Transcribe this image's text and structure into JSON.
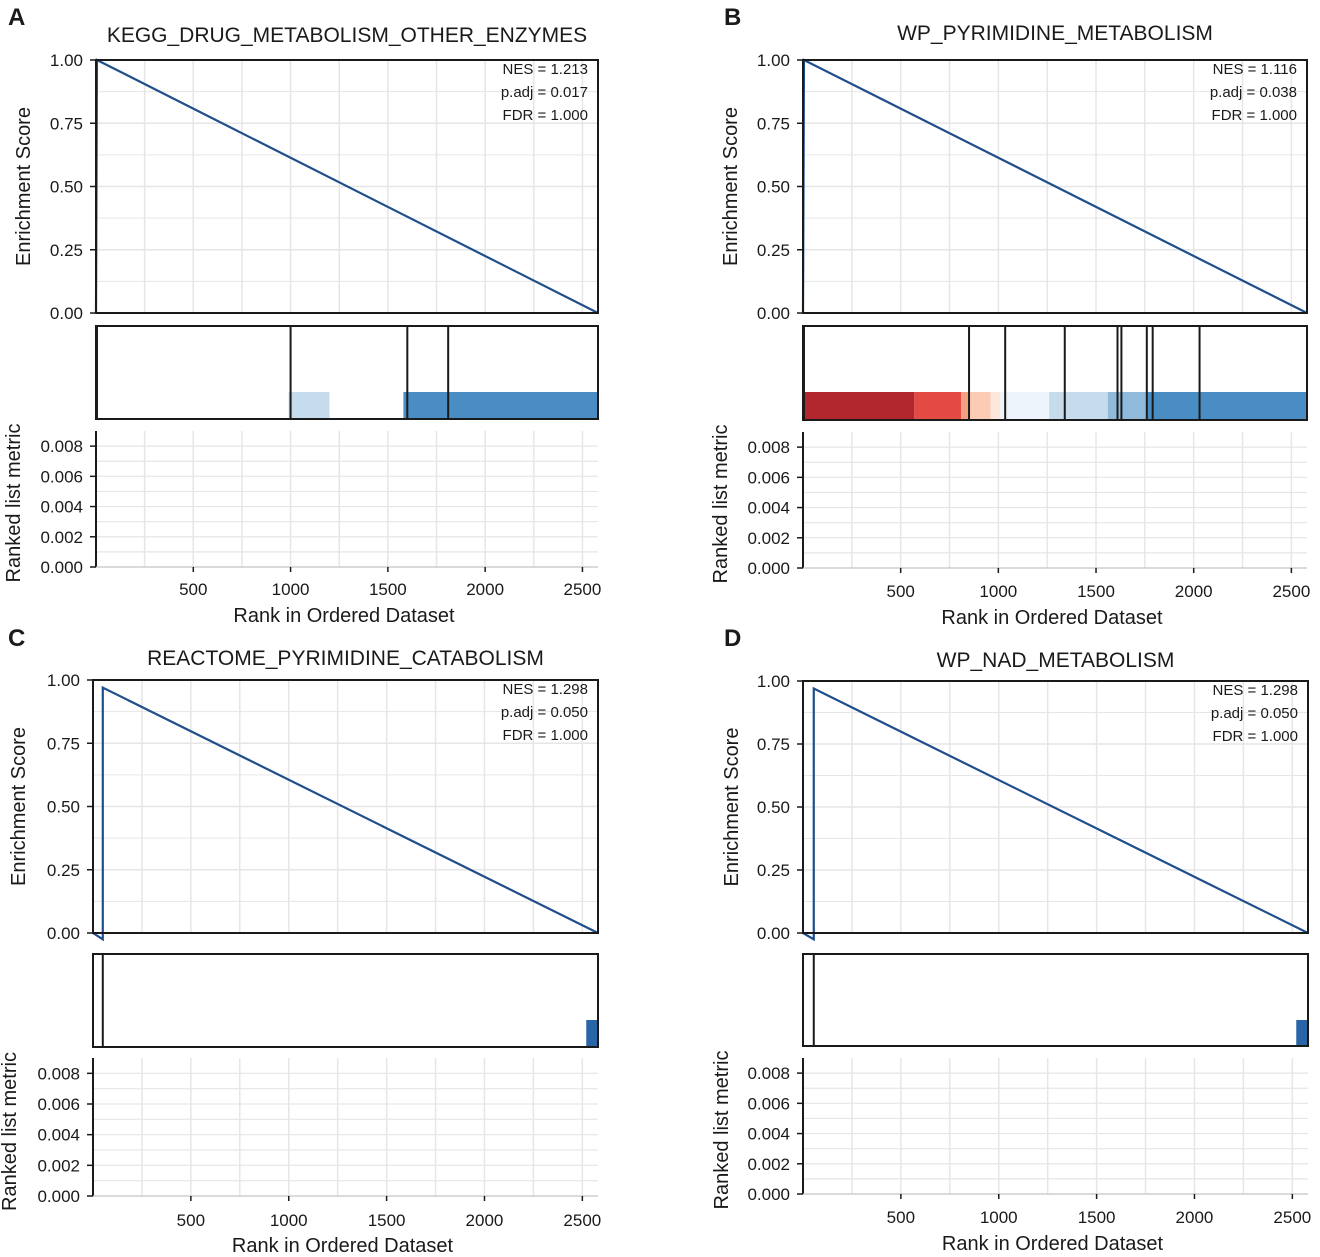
{
  "figure": {
    "colors": {
      "curve": "#1f4e8c",
      "frame": "#1a1a1a",
      "grid": "#e6e6e6",
      "zero_line": "#999999",
      "text": "#1a1a1a"
    }
  },
  "chart_data": [
    {
      "panel": "A",
      "type": "line",
      "title": "KEGG_DRUG_METABOLISM_OTHER_ENZYMES",
      "stats": [
        "NES = 1.213",
        "p.adj = 0.017",
        "FDR = 1.000"
      ],
      "ylabel": "Enrichment Score",
      "ylabel_metric": "Ranked list metric",
      "xlabel": "Rank in Ordered Dataset",
      "xlim": [
        0,
        2580
      ],
      "ylim": [
        0,
        1
      ],
      "yticks": [
        "0.00",
        "0.25",
        "0.50",
        "0.75",
        "1.00"
      ],
      "metric_ylim": [
        0,
        0.009
      ],
      "metric_yticks": [
        "0.000",
        "0.002",
        "0.004",
        "0.006",
        "0.008"
      ],
      "xticks": [
        "500",
        "1000",
        "1500",
        "2000",
        "2500"
      ],
      "es_curve": {
        "x": [
          0,
          5,
          2580
        ],
        "y": [
          0,
          1.0,
          0
        ]
      },
      "hits": [
        5,
        1000,
        1600,
        1810
      ],
      "heat_segments": [
        {
          "from": 990,
          "to": 1200,
          "color": "#c6dcec"
        },
        {
          "from": 1580,
          "to": 2580,
          "color": "#4a8cc4"
        }
      ]
    },
    {
      "panel": "B",
      "type": "line",
      "title": "WP_PYRIMIDINE_METABOLISM",
      "stats": [
        "NES = 1.116",
        "p.adj = 0.038",
        "FDR = 1.000"
      ],
      "ylabel": "Enrichment Score",
      "ylabel_metric": "Ranked list metric",
      "xlabel": "Rank in Ordered Dataset",
      "xlim": [
        0,
        2580
      ],
      "ylim": [
        0,
        1
      ],
      "yticks": [
        "0.00",
        "0.25",
        "0.50",
        "0.75",
        "1.00"
      ],
      "metric_ylim": [
        0,
        0.009
      ],
      "metric_yticks": [
        "0.000",
        "0.002",
        "0.004",
        "0.006",
        "0.008"
      ],
      "xticks": [
        "500",
        "1000",
        "1500",
        "2000",
        "2500"
      ],
      "es_curve": {
        "x": [
          0,
          5,
          2580
        ],
        "y": [
          0,
          1.0,
          0
        ]
      },
      "hits": [
        5,
        850,
        1035,
        1340,
        1610,
        1630,
        1760,
        1790,
        2030
      ],
      "heat_segments": [
        {
          "from": 0,
          "to": 570,
          "color": "#b2262e"
        },
        {
          "from": 570,
          "to": 810,
          "color": "#e34a43"
        },
        {
          "from": 810,
          "to": 850,
          "color": "#f4a080"
        },
        {
          "from": 850,
          "to": 960,
          "color": "#fbcbb4"
        },
        {
          "from": 960,
          "to": 1010,
          "color": "#fde7dc"
        },
        {
          "from": 1010,
          "to": 1260,
          "color": "#eef4fb"
        },
        {
          "from": 1260,
          "to": 1560,
          "color": "#c6dcec"
        },
        {
          "from": 1560,
          "to": 1760,
          "color": "#8fbadc"
        },
        {
          "from": 1760,
          "to": 2580,
          "color": "#4a8cc4"
        }
      ]
    },
    {
      "panel": "C",
      "type": "line",
      "title": "REACTOME_PYRIMIDINE_CATABOLISM",
      "stats": [
        "NES = 1.298",
        "p.adj = 0.050",
        "FDR = 1.000"
      ],
      "ylabel": "Enrichment Score",
      "ylabel_metric": "Ranked list metric",
      "xlabel": "Rank in Ordered Dataset",
      "xlim": [
        0,
        2580
      ],
      "ylim": [
        0,
        1
      ],
      "yticks": [
        "0.00",
        "0.25",
        "0.50",
        "0.75",
        "1.00"
      ],
      "metric_ylim": [
        0,
        0.009
      ],
      "metric_yticks": [
        "0.000",
        "0.002",
        "0.004",
        "0.006",
        "0.008"
      ],
      "xticks": [
        "500",
        "1000",
        "1500",
        "2000",
        "2500"
      ],
      "es_curve": {
        "x": [
          0,
          50,
          50,
          2580
        ],
        "y": [
          0,
          -0.025,
          0.97,
          0
        ]
      },
      "hits": [
        50
      ],
      "heat_segments": [
        {
          "from": 2520,
          "to": 2580,
          "color": "#2a65a8"
        }
      ]
    },
    {
      "panel": "D",
      "type": "line",
      "title": "WP_NAD_METABOLISM",
      "stats": [
        "NES = 1.298",
        "p.adj = 0.050",
        "FDR = 1.000"
      ],
      "ylabel": "Enrichment Score",
      "ylabel_metric": "Ranked list metric",
      "xlabel": "Rank in Ordered Dataset",
      "xlim": [
        0,
        2580
      ],
      "ylim": [
        0,
        1
      ],
      "yticks": [
        "0.00",
        "0.25",
        "0.50",
        "0.75",
        "1.00"
      ],
      "metric_ylim": [
        0,
        0.009
      ],
      "metric_yticks": [
        "0.000",
        "0.002",
        "0.004",
        "0.006",
        "0.008"
      ],
      "xticks": [
        "500",
        "1000",
        "1500",
        "2000",
        "2500"
      ],
      "es_curve": {
        "x": [
          0,
          55,
          55,
          2580
        ],
        "y": [
          0,
          -0.025,
          0.97,
          0
        ]
      },
      "hits": [
        55
      ],
      "heat_segments": [
        {
          "from": 2520,
          "to": 2580,
          "color": "#2a65a8"
        }
      ]
    }
  ]
}
